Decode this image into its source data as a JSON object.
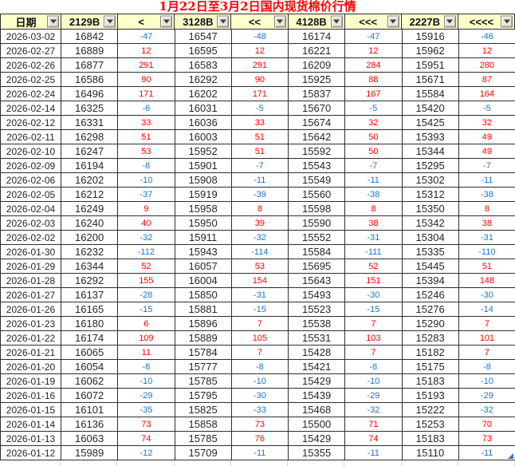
{
  "title": "1月22日至3月2日国内现货棉价行情",
  "colors": {
    "title": "#ff0000",
    "header_bg": "#ffffcc",
    "positive_change": "#ff0000",
    "negative_change": "#1a75d2",
    "price_text": "#262626",
    "grid_border": "#2e2e2e",
    "fill_handle": "#3a6fc4"
  },
  "icons": {
    "filter_dropdown": "chevron-down-triangle"
  },
  "table": {
    "columns": [
      "日期",
      "2129B",
      "<",
      "3128B",
      "<<",
      "4128B",
      "<<<",
      "2227B",
      "<<<<"
    ],
    "rows": [
      [
        "2026-03-02",
        16842,
        -47,
        16547,
        -48,
        16174,
        -47,
        15916,
        -46
      ],
      [
        "2026-02-27",
        16889,
        12,
        16595,
        12,
        16221,
        12,
        15962,
        12
      ],
      [
        "2026-02-26",
        16877,
        291,
        16583,
        291,
        16209,
        284,
        15951,
        280
      ],
      [
        "2026-02-25",
        16586,
        90,
        16292,
        90,
        15925,
        88,
        15671,
        87
      ],
      [
        "2026-02-24",
        16496,
        171,
        16202,
        171,
        15837,
        167,
        15584,
        164
      ],
      [
        "2026-02-14",
        16325,
        -6,
        16031,
        -5,
        15670,
        -5,
        15420,
        -5
      ],
      [
        "2026-02-12",
        16331,
        33,
        16036,
        33,
        15674,
        32,
        15425,
        32
      ],
      [
        "2026-02-11",
        16298,
        51,
        16003,
        51,
        15642,
        50,
        15393,
        49
      ],
      [
        "2026-02-10",
        16247,
        53,
        15952,
        51,
        15592,
        50,
        15344,
        49
      ],
      [
        "2026-02-09",
        16194,
        -8,
        15901,
        -7,
        15543,
        -7,
        15295,
        -7
      ],
      [
        "2026-02-06",
        16202,
        -10,
        15908,
        -11,
        15549,
        -11,
        15302,
        -11
      ],
      [
        "2026-02-05",
        16212,
        -37,
        15919,
        -39,
        15560,
        -38,
        15312,
        -38
      ],
      [
        "2026-02-04",
        16249,
        9,
        15958,
        8,
        15598,
        8,
        15350,
        8
      ],
      [
        "2026-02-03",
        16240,
        40,
        15950,
        39,
        15590,
        38,
        15342,
        38
      ],
      [
        "2026-02-02",
        16200,
        -32,
        15911,
        -32,
        15552,
        -31,
        15304,
        -31
      ],
      [
        "2026-01-30",
        16232,
        -112,
        15943,
        -114,
        15584,
        -111,
        15335,
        -110
      ],
      [
        "2026-01-29",
        16344,
        52,
        16057,
        53,
        15695,
        52,
        15445,
        51
      ],
      [
        "2026-01-28",
        16292,
        155,
        16004,
        154,
        15643,
        151,
        15394,
        148
      ],
      [
        "2026-01-27",
        16137,
        -28,
        15850,
        -31,
        15493,
        -30,
        15246,
        -30
      ],
      [
        "2026-01-26",
        16165,
        -15,
        15881,
        -15,
        15523,
        -15,
        15276,
        -14
      ],
      [
        "2026-01-23",
        16180,
        6,
        15896,
        7,
        15538,
        7,
        15290,
        7
      ],
      [
        "2026-01-22",
        16174,
        109,
        15889,
        105,
        15531,
        103,
        15283,
        101
      ],
      [
        "2026-01-21",
        16065,
        11,
        15784,
        7,
        15428,
        7,
        15182,
        7
      ],
      [
        "2026-01-20",
        16054,
        -8,
        15777,
        -8,
        15421,
        -8,
        15175,
        -8
      ],
      [
        "2026-01-19",
        16062,
        -10,
        15785,
        -10,
        15429,
        -10,
        15183,
        -10
      ],
      [
        "2026-01-16",
        16072,
        -29,
        15795,
        -30,
        15439,
        -29,
        15193,
        -29
      ],
      [
        "2026-01-15",
        16101,
        -35,
        15825,
        -33,
        15468,
        -32,
        15222,
        -32
      ],
      [
        "2026-01-14",
        16136,
        73,
        15858,
        73,
        15500,
        71,
        15253,
        70
      ],
      [
        "2026-01-13",
        16063,
        74,
        15785,
        76,
        15429,
        74,
        15183,
        73
      ],
      [
        "2026-01-12",
        15989,
        -12,
        15709,
        -11,
        15355,
        -11,
        15110,
        -11
      ]
    ]
  }
}
